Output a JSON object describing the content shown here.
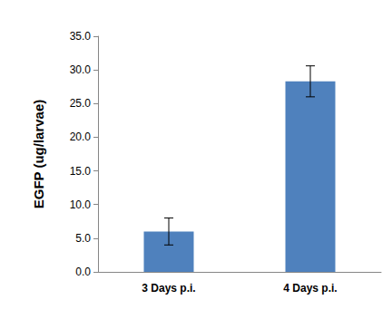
{
  "chart_data": {
    "type": "bar",
    "y_label": "EGFP (ug/larvae)",
    "categories": [
      "3 Days p.i.",
      "4 Days p.i."
    ],
    "values": [
      6.0,
      28.3
    ],
    "errors": [
      2.0,
      2.3
    ],
    "color": "#4f81bd",
    "ylim": [
      0,
      35
    ],
    "yticks": [
      {
        "value": 0,
        "label": "0.0"
      },
      {
        "value": 5,
        "label": "5.0"
      },
      {
        "value": 10,
        "label": "10.0"
      },
      {
        "value": 15,
        "label": "15.0"
      },
      {
        "value": 20,
        "label": "20.0"
      },
      {
        "value": 25,
        "label": "25.0"
      },
      {
        "value": 30,
        "label": "30.0"
      },
      {
        "value": 35,
        "label": "35.0"
      }
    ],
    "grid": false
  }
}
